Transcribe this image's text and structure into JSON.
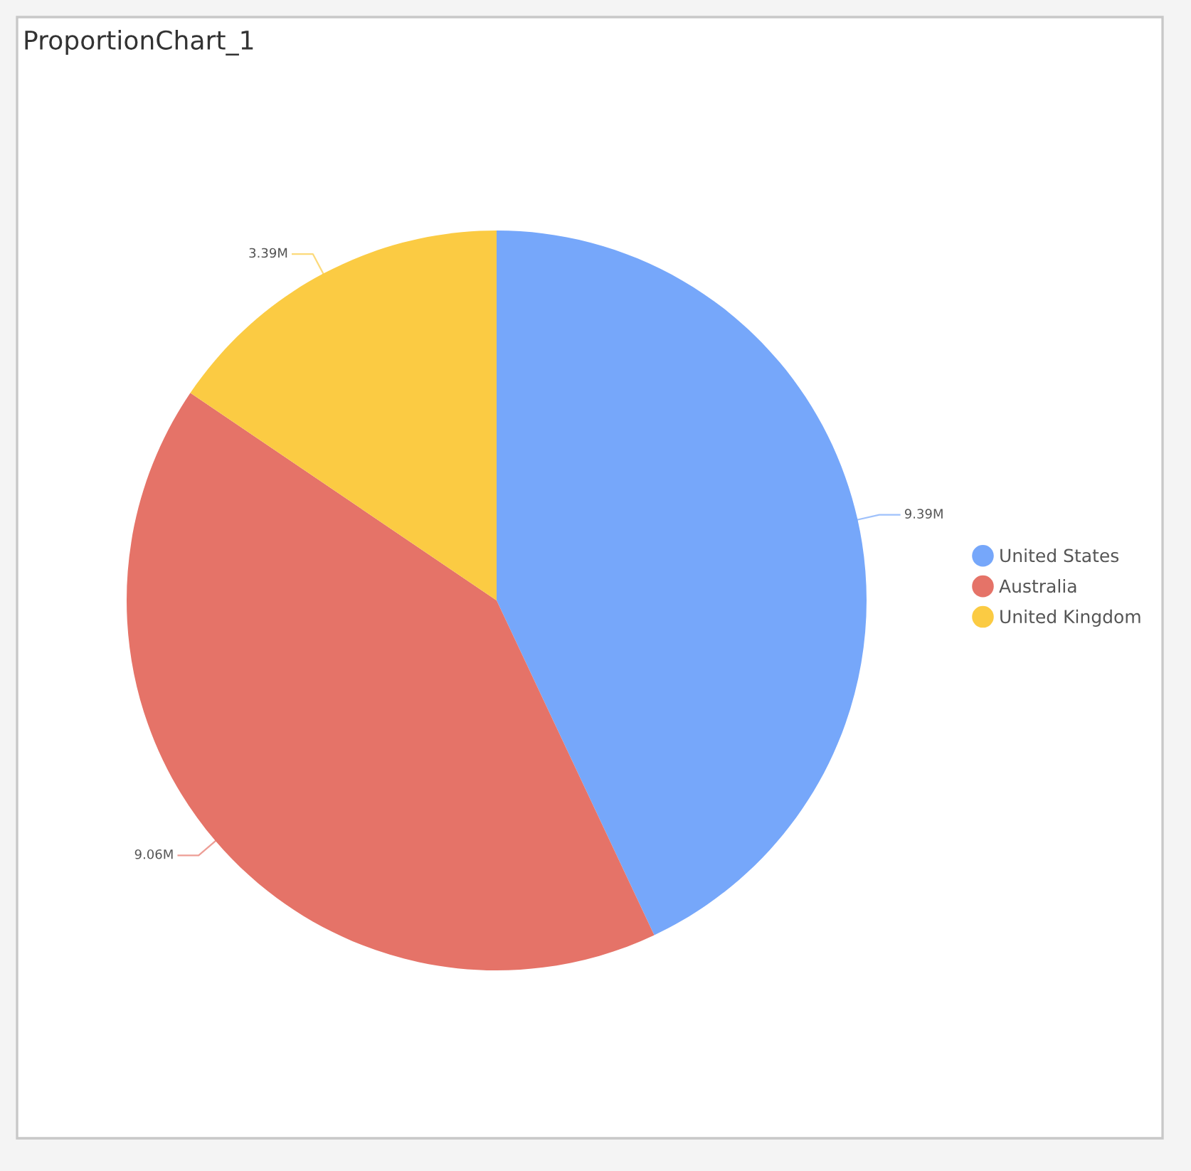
{
  "chart_data": {
    "type": "pie",
    "title": "ProportionChart_1",
    "categories": [
      "United States",
      "Australia",
      "United Kingdom"
    ],
    "values": [
      9.39,
      9.06,
      3.39
    ],
    "value_labels": [
      "9.39M",
      "9.06M",
      "3.39M"
    ],
    "colors": [
      "#76a7fa",
      "#e57368",
      "#fbcb43"
    ],
    "legend": "right"
  }
}
